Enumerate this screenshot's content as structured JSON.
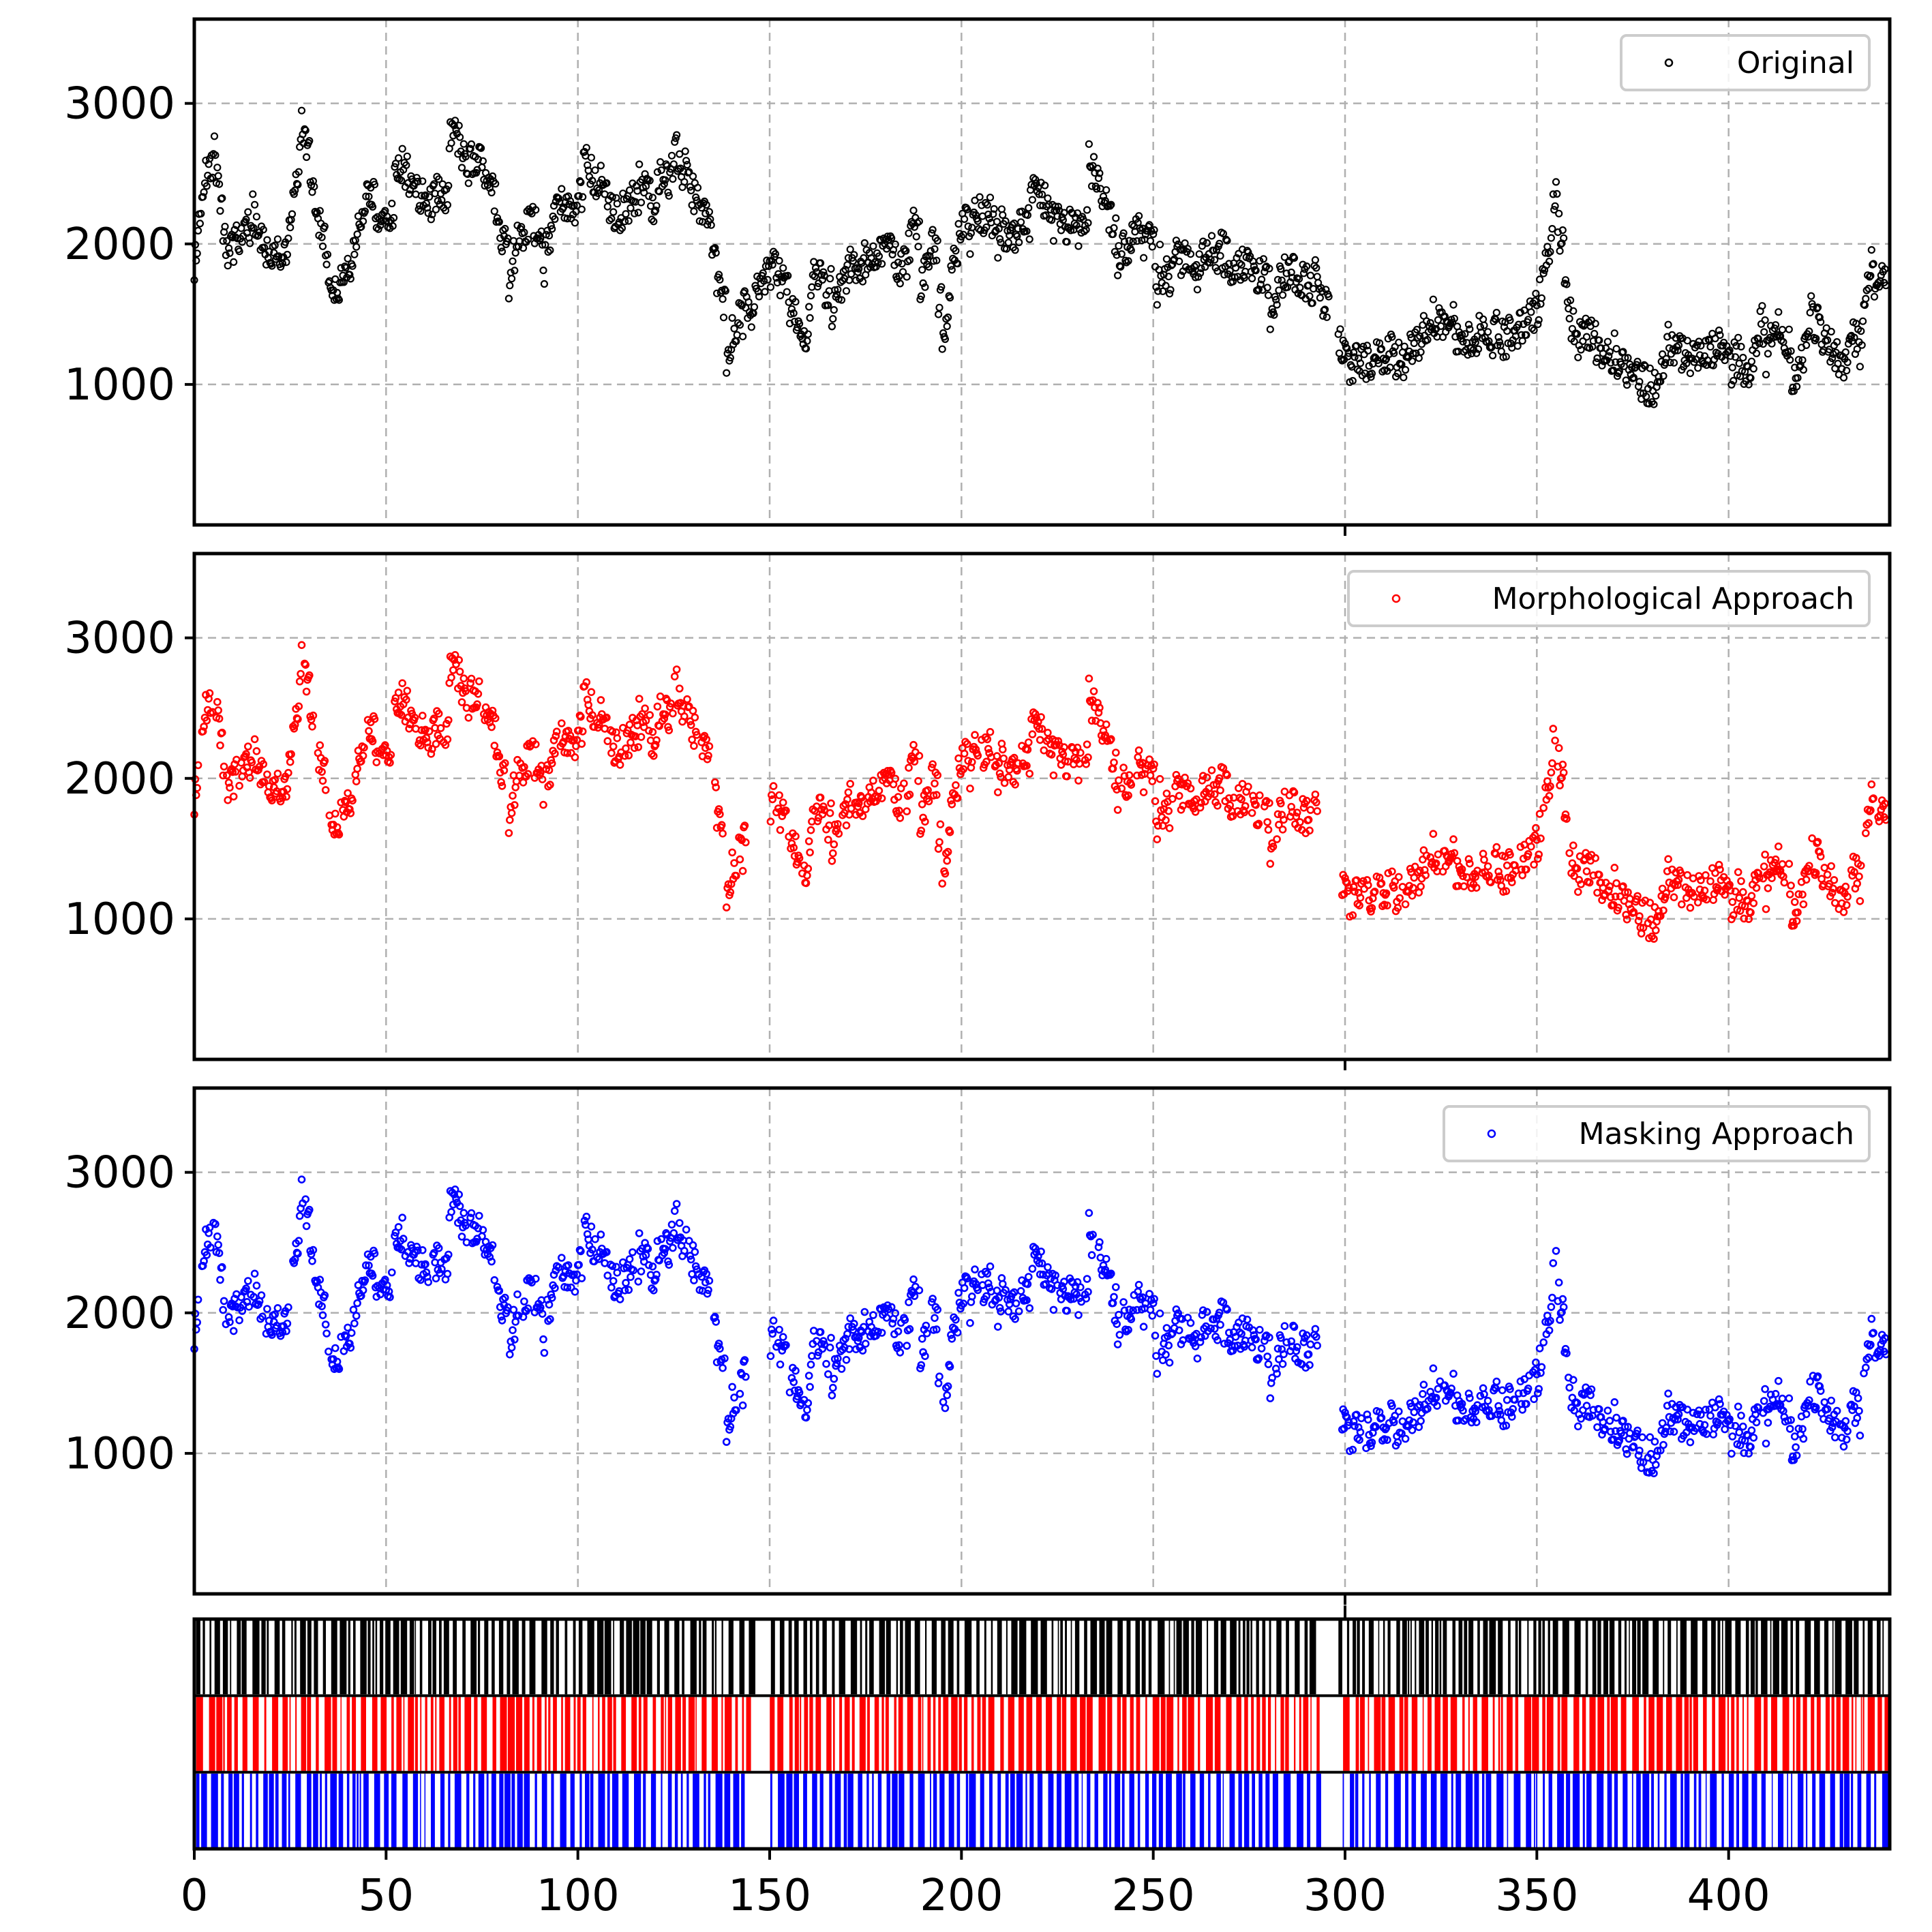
{
  "chart_data": [
    {
      "type": "scatter",
      "panel": "top",
      "series": [
        {
          "name": "Original",
          "color": "#000000"
        }
      ],
      "legend_placement": "upper-right",
      "xlim": [
        0,
        442
      ],
      "ylim": [
        0,
        3600
      ],
      "yticks": [
        "1000",
        "2000",
        "3000"
      ],
      "grid": true,
      "trend": {
        "x": [
          0,
          2,
          5,
          8,
          12,
          16,
          20,
          24,
          28,
          32,
          36,
          40,
          45,
          50,
          55,
          60,
          65,
          70,
          75,
          80,
          85,
          90,
          95,
          100,
          105,
          110,
          115,
          120,
          125,
          130,
          135,
          138,
          141,
          145,
          150,
          155,
          158,
          162,
          168,
          175,
          180,
          185,
          190,
          195,
          200,
          205,
          210,
          215,
          220,
          225,
          230,
          235,
          240,
          245,
          250,
          255,
          260,
          265,
          270,
          275,
          280,
          285,
          292,
          297,
          300,
          305,
          310,
          315,
          320,
          325,
          330,
          335,
          340,
          345,
          350,
          355,
          360,
          365,
          370,
          375,
          380,
          385,
          390,
          395,
          400,
          405,
          410,
          415,
          420,
          425,
          430,
          435,
          441
        ],
        "y": [
          1800,
          2300,
          2600,
          2100,
          2050,
          2200,
          1900,
          1800,
          2600,
          2300,
          1800,
          2000,
          2500,
          2100,
          2600,
          2300,
          2400,
          2500,
          2600,
          2300,
          2400,
          2300,
          2400,
          2300,
          2400,
          2200,
          2400,
          2300,
          2500,
          2400,
          2000,
          1500,
          1600,
          1700,
          1900,
          1700,
          1400,
          1800,
          1900,
          1950,
          1900,
          2000,
          2100,
          1900,
          2250,
          2100,
          1900,
          2000,
          1950,
          2000,
          1900,
          2100,
          2000,
          1900,
          2000,
          1900,
          1850,
          1900,
          1850,
          1800,
          1850,
          1800,
          1700,
          1600,
          1200,
          1150,
          1200,
          1150,
          1300,
          1400,
          1300,
          1500,
          1400,
          1300,
          1500,
          2200,
          1300,
          1400,
          1200,
          1100,
          1000,
          1300,
          1200,
          1250,
          1300,
          1250,
          1400,
          1300,
          1400,
          1300,
          1300,
          1350,
          1700
        ],
        "amplitude": 250
      },
      "gaps": [
        [
          296,
          298
        ]
      ]
    },
    {
      "type": "scatter",
      "panel": "middle",
      "series": [
        {
          "name": "Morphological Approach",
          "color": "#ff0000"
        }
      ],
      "legend_placement": "upper-right",
      "xlim": [
        0,
        442
      ],
      "ylim": [
        0,
        3600
      ],
      "yticks": [
        "1000",
        "2000",
        "3000"
      ],
      "grid": true,
      "gaps": [
        [
          144,
          150
        ],
        [
          293,
          299
        ]
      ]
    },
    {
      "type": "scatter",
      "panel": "bottom",
      "series": [
        {
          "name": "Masking Approach",
          "color": "#0000ff"
        }
      ],
      "legend_placement": "upper-right",
      "xlim": [
        0,
        442
      ],
      "ylim": [
        0,
        3600
      ],
      "yticks": [
        "1000",
        "2000",
        "3000"
      ],
      "grid": true,
      "gaps": [
        [
          144,
          150
        ],
        [
          293,
          299
        ]
      ]
    },
    {
      "type": "event-raster",
      "panel": "events",
      "rows": [
        {
          "name": "Original",
          "color": "#000000",
          "gaps": [
            [
              145,
              150
            ],
            [
              293,
              298
            ]
          ]
        },
        {
          "name": "Morphological Approach",
          "color": "#ff0000",
          "gaps": [
            [
              144,
              150
            ],
            [
              293,
              299
            ]
          ]
        },
        {
          "name": "Masking Approach",
          "color": "#0000ff",
          "gaps": [
            [
              144,
              150
            ],
            [
              293,
              299
            ]
          ]
        }
      ],
      "xlim": [
        0,
        442
      ],
      "xticks": [
        "0",
        "50",
        "100",
        "150",
        "200",
        "250",
        "300",
        "350",
        "400"
      ]
    }
  ]
}
